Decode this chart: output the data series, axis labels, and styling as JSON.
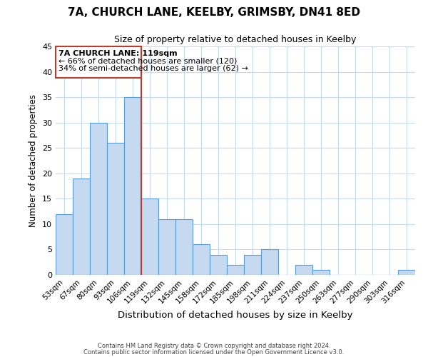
{
  "title": "7A, CHURCH LANE, KEELBY, GRIMSBY, DN41 8ED",
  "subtitle": "Size of property relative to detached houses in Keelby",
  "xlabel": "Distribution of detached houses by size in Keelby",
  "ylabel": "Number of detached properties",
  "bar_labels": [
    "53sqm",
    "67sqm",
    "80sqm",
    "93sqm",
    "106sqm",
    "119sqm",
    "132sqm",
    "145sqm",
    "158sqm",
    "172sqm",
    "185sqm",
    "198sqm",
    "211sqm",
    "224sqm",
    "237sqm",
    "250sqm",
    "263sqm",
    "277sqm",
    "290sqm",
    "303sqm",
    "316sqm"
  ],
  "bar_values": [
    12,
    19,
    30,
    26,
    35,
    15,
    11,
    11,
    6,
    4,
    2,
    4,
    5,
    0,
    2,
    1,
    0,
    0,
    0,
    0,
    1
  ],
  "bar_color": "#c5d9f0",
  "bar_edge_color": "#5b9bd5",
  "highlight_index": 5,
  "highlight_line_color": "#c0392b",
  "ylim": [
    0,
    45
  ],
  "yticks": [
    0,
    5,
    10,
    15,
    20,
    25,
    30,
    35,
    40,
    45
  ],
  "annotation_text_line1": "7A CHURCH LANE: 119sqm",
  "annotation_text_line2": "← 66% of detached houses are smaller (120)",
  "annotation_text_line3": "34% of semi-detached houses are larger (62) →",
  "footer_line1": "Contains HM Land Registry data © Crown copyright and database right 2024.",
  "footer_line2": "Contains public sector information licensed under the Open Government Licence v3.0.",
  "background_color": "#ffffff",
  "grid_color": "#c5d9f0",
  "title_fontsize": 11,
  "subtitle_fontsize": 9
}
